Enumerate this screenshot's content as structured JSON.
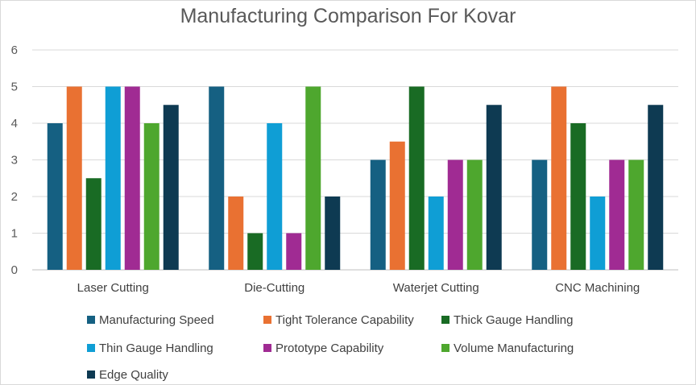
{
  "chart_data": {
    "type": "bar",
    "title": "Manufacturing Comparison For Kovar",
    "xlabel": "",
    "ylabel": "",
    "ylim": [
      0,
      6
    ],
    "yticks": [
      0,
      1,
      2,
      3,
      4,
      5,
      6
    ],
    "grid": true,
    "legend_position": "bottom",
    "categories": [
      "Laser Cutting",
      "Die-Cutting",
      "Waterjet Cutting",
      "CNC Machining"
    ],
    "series": [
      {
        "name": "Manufacturing Speed",
        "color": "#156082",
        "values": [
          4,
          5,
          3,
          3
        ]
      },
      {
        "name": "Tight Tolerance Capability",
        "color": "#E97132",
        "values": [
          5,
          2,
          3.5,
          5
        ]
      },
      {
        "name": "Thick Gauge Handling",
        "color": "#196B24",
        "values": [
          2.5,
          1,
          5,
          4
        ]
      },
      {
        "name": "Thin Gauge Handling",
        "color": "#0F9ED5",
        "values": [
          5,
          4,
          2,
          2
        ]
      },
      {
        "name": "Prototype Capability",
        "color": "#A02B93",
        "values": [
          5,
          1,
          3,
          3
        ]
      },
      {
        "name": "Volume Manufacturing",
        "color": "#4EA72E",
        "values": [
          4,
          5,
          3,
          3
        ]
      },
      {
        "name": "Edge Quality",
        "color": "#0E3A52",
        "values": [
          4.5,
          2,
          4.5,
          4.5
        ]
      }
    ]
  }
}
